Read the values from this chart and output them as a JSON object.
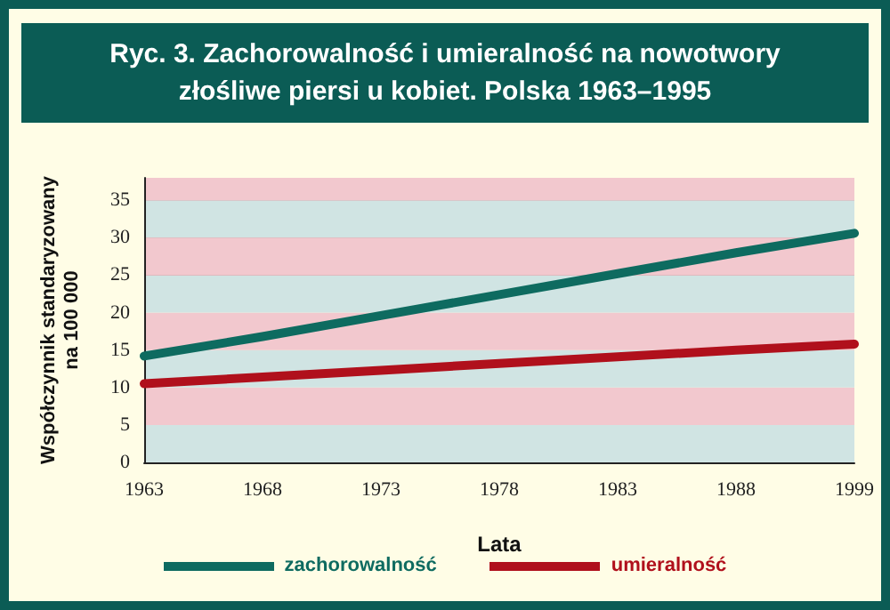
{
  "chart_data": {
    "type": "line",
    "title": "Ryc. 3. Zachorowalność i umieralność na nowotwory złośliwe piersi u kobiet. Polska 1963–1995",
    "xlabel": "Lata",
    "ylabel": "Współczynnik standaryzowany na 100 000",
    "categories": [
      "1963",
      "1968",
      "1973",
      "1978",
      "1983",
      "1988",
      "1999"
    ],
    "series": [
      {
        "name": "zachorowalność",
        "color": "#0e6b60",
        "values": [
          14.2,
          16.8,
          19.6,
          22.4,
          25.2,
          28.0,
          30.6
        ]
      },
      {
        "name": "umieralność",
        "color": "#b0101c",
        "values": [
          10.5,
          11.4,
          12.3,
          13.2,
          14.1,
          15.0,
          15.8
        ]
      }
    ],
    "ylim": [
      0,
      38
    ],
    "yticks": [
      0,
      5,
      10,
      15,
      20,
      25,
      30,
      35
    ],
    "grid": "y",
    "legend": "bottom",
    "marker": "none",
    "line_style": "solid",
    "bands": [
      {
        "axis": "y",
        "from": 0,
        "to": 5,
        "color": "#d0e4e3"
      },
      {
        "axis": "y",
        "from": 5,
        "to": 10,
        "color": "#f2c8ce"
      },
      {
        "axis": "y",
        "from": 10,
        "to": 15,
        "color": "#d0e4e3"
      },
      {
        "axis": "y",
        "from": 15,
        "to": 20,
        "color": "#f2c8ce"
      },
      {
        "axis": "y",
        "from": 20,
        "to": 25,
        "color": "#d0e4e3"
      },
      {
        "axis": "y",
        "from": 25,
        "to": 30,
        "color": "#f2c8ce"
      },
      {
        "axis": "y",
        "from": 30,
        "to": 35,
        "color": "#d0e4e3"
      },
      {
        "axis": "y",
        "from": 35,
        "to": 38,
        "color": "#f2c8ce"
      }
    ]
  }
}
